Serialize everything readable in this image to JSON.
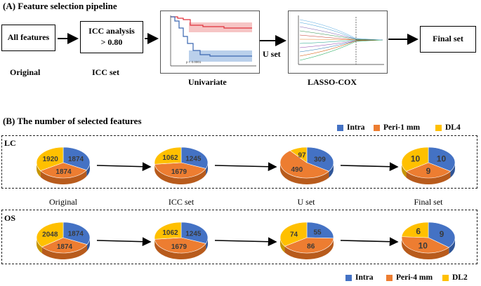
{
  "panel_a": {
    "title": "(A) Feature selection pipeline",
    "box_all_features": "All features",
    "box_icc_line1": "ICC analysis",
    "box_icc_line2": "> 0.80",
    "box_final": "Final set",
    "label_original": "Original",
    "label_icc_set": "ICC set",
    "label_univariate": "Univariate",
    "label_u_set": "U set",
    "label_lasso": "LASSO-COX"
  },
  "panel_b": {
    "title": "(B) The number of selected features",
    "legend_top": [
      {
        "label": "Intra",
        "color": "#4472C4"
      },
      {
        "label": "Peri-1 mm",
        "color": "#ED7D31"
      },
      {
        "label": "DL4",
        "color": "#FFC000"
      }
    ],
    "legend_bottom": [
      {
        "label": "Intra",
        "color": "#4472C4"
      },
      {
        "label": "Peri-4 mm",
        "color": "#ED7D31"
      },
      {
        "label": "DL2",
        "color": "#FFC000"
      }
    ],
    "stage_labels": [
      "Original",
      "ICC set",
      "U set",
      "Final set"
    ],
    "groups": [
      {
        "tag": "LC",
        "pies": [
          {
            "intra": 1874,
            "peri": 1874,
            "dl": 1920
          },
          {
            "intra": 1245,
            "peri": 1679,
            "dl": 1062
          },
          {
            "intra": 309,
            "peri": 490,
            "dl": 97
          },
          {
            "intra": 10,
            "peri": 9,
            "dl": 10
          }
        ]
      },
      {
        "tag": "OS",
        "pies": [
          {
            "intra": 1874,
            "peri": 1874,
            "dl": 2048
          },
          {
            "intra": 1245,
            "peri": 1679,
            "dl": 1062
          },
          {
            "intra": 55,
            "peri": 86,
            "dl": 74
          },
          {
            "intra": 9,
            "peri": 10,
            "dl": 6
          }
        ]
      }
    ]
  },
  "colors": {
    "intra": "#4472C4",
    "peri": "#ED7D31",
    "dl": "#FFC000"
  }
}
